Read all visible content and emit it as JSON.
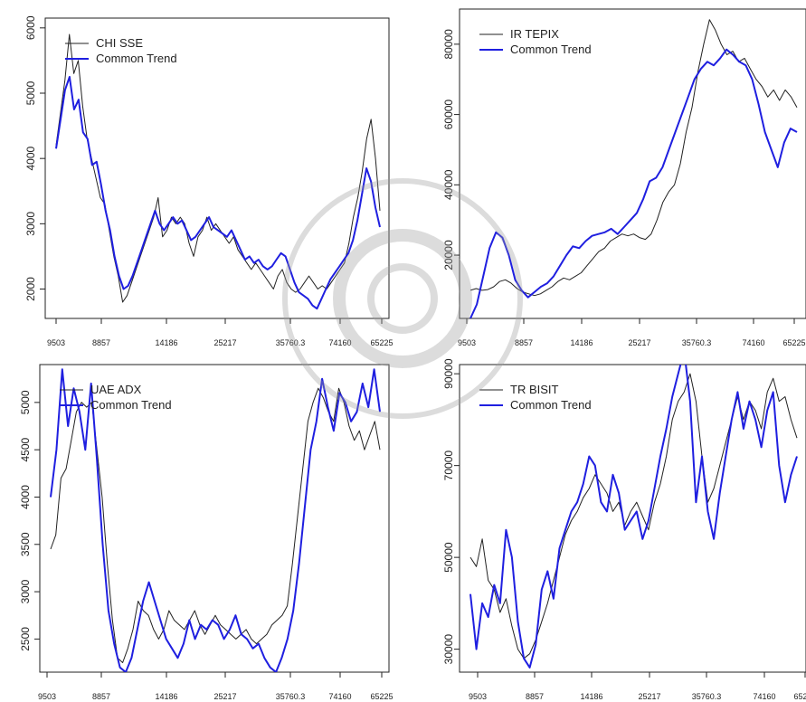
{
  "colors": {
    "index": "#222222",
    "trend": "#1f1fe0",
    "watermark": "#bdbdbd"
  },
  "chart_data": [
    {
      "type": "line",
      "legend_position": "top-left",
      "x_tick_labels": [
        "9503",
        "8857",
        "14186",
        "25217",
        "35760.3",
        "74160",
        "65225"
      ],
      "ylim": [
        1550,
        6150
      ],
      "y_ticks": [
        2000,
        3000,
        4000,
        5000,
        6000
      ],
      "series": [
        {
          "name": "CHI SSE",
          "values": [
            4200,
            4700,
            5200,
            5900,
            5300,
            5500,
            4800,
            4300,
            4000,
            3700,
            3400,
            3300,
            2900,
            2500,
            2200,
            1800,
            1900,
            2100,
            2300,
            2500,
            2700,
            2900,
            3100,
            3400,
            2800,
            2900,
            3100,
            3000,
            3100,
            3000,
            2700,
            2500,
            2800,
            2900,
            3100,
            2900,
            3000,
            2900,
            2800,
            2700,
            2800,
            2600,
            2500,
            2400,
            2300,
            2400,
            2300,
            2200,
            2100,
            2000,
            2200,
            2300,
            2100,
            2000,
            1950,
            2000,
            2100,
            2200,
            2100,
            2000,
            2050,
            2000,
            2100,
            2200,
            2300,
            2400,
            2700,
            3100,
            3400,
            3800,
            4300,
            4600,
            4000,
            3200
          ]
        },
        {
          "name": "Common Trend",
          "values": [
            4150,
            4600,
            5050,
            5250,
            4750,
            4900,
            4400,
            4300,
            3900,
            3950,
            3600,
            3200,
            2900,
            2500,
            2200,
            2000,
            2050,
            2200,
            2400,
            2600,
            2800,
            3000,
            3200,
            3000,
            2900,
            3000,
            3100,
            3000,
            3050,
            2900,
            2750,
            2800,
            2900,
            3000,
            3100,
            2950,
            2900,
            2850,
            2800,
            2900,
            2750,
            2600,
            2450,
            2500,
            2400,
            2450,
            2350,
            2300,
            2350,
            2450,
            2550,
            2500,
            2300,
            2100,
            1950,
            1900,
            1850,
            1750,
            1700,
            1850,
            2000,
            2150,
            2250,
            2350,
            2450,
            2550,
            2750,
            3050,
            3450,
            3850,
            3650,
            3250,
            2950
          ]
        }
      ]
    },
    {
      "type": "line",
      "legend_position": "top-left",
      "x_tick_labels": [
        "9503",
        "8857",
        "14186",
        "25217",
        "35760.3",
        "74160",
        "65225"
      ],
      "ylim": [
        2000,
        90000
      ],
      "y_ticks": [
        20000,
        40000,
        60000,
        80000
      ],
      "series": [
        {
          "name": "IR TEPIX",
          "values": [
            10000,
            10500,
            10000,
            10200,
            11000,
            12500,
            13000,
            12000,
            10500,
            9500,
            9000,
            8500,
            9000,
            10000,
            11000,
            12500,
            13500,
            13000,
            14000,
            15000,
            17000,
            19000,
            21000,
            22000,
            24000,
            25000,
            26000,
            25500,
            26000,
            25000,
            24500,
            26000,
            30000,
            35000,
            38000,
            40000,
            46000,
            55000,
            62000,
            72000,
            80000,
            87000,
            84000,
            80000,
            77000,
            78000,
            75000,
            76000,
            73000,
            70000,
            68000,
            65000,
            67000,
            64000,
            67000,
            65000,
            62000
          ]
        },
        {
          "name": "Common Trend",
          "values": [
            2000,
            6000,
            14000,
            22000,
            26500,
            25000,
            20000,
            13000,
            10000,
            8000,
            9500,
            11000,
            12000,
            14000,
            17000,
            20000,
            22500,
            22000,
            24000,
            25500,
            26000,
            26500,
            27500,
            26000,
            28000,
            30000,
            32000,
            36000,
            41000,
            42000,
            45000,
            50000,
            55000,
            60000,
            65000,
            70000,
            73000,
            75000,
            74000,
            76000,
            78500,
            77000,
            75000,
            74000,
            70000,
            63000,
            55000,
            50000,
            45000,
            52000,
            56000,
            55000
          ]
        }
      ]
    },
    {
      "type": "line",
      "legend_position": "top-left",
      "x_tick_labels": [
        "9503",
        "8857",
        "14186",
        "25217",
        "35760.3",
        "74160",
        "65225"
      ],
      "ylim": [
        2150,
        5400
      ],
      "y_ticks": [
        2500,
        3000,
        3500,
        4000,
        4500,
        5000
      ],
      "series": [
        {
          "name": "UAE ADX",
          "values": [
            3450,
            3600,
            4200,
            4300,
            4600,
            4900,
            5000,
            4950,
            5000,
            4500,
            4000,
            3300,
            2700,
            2300,
            2250,
            2400,
            2600,
            2900,
            2800,
            2750,
            2600,
            2500,
            2600,
            2800,
            2700,
            2650,
            2600,
            2700,
            2800,
            2650,
            2550,
            2650,
            2750,
            2650,
            2600,
            2550,
            2500,
            2550,
            2600,
            2500,
            2450,
            2500,
            2550,
            2650,
            2700,
            2750,
            2850,
            3300,
            3800,
            4300,
            4800,
            5000,
            5150,
            5050,
            4900,
            4800,
            5150,
            5000,
            4750,
            4600,
            4700,
            4500,
            4650,
            4800,
            4500
          ]
        },
        {
          "name": "Common Trend",
          "values": [
            4000,
            4500,
            5350,
            4750,
            5150,
            4900,
            4500,
            5200,
            4400,
            3500,
            2800,
            2450,
            2200,
            2150,
            2300,
            2600,
            2900,
            3100,
            2900,
            2700,
            2500,
            2400,
            2300,
            2450,
            2700,
            2500,
            2650,
            2600,
            2700,
            2650,
            2500,
            2600,
            2750,
            2550,
            2500,
            2400,
            2450,
            2300,
            2200,
            2150,
            2300,
            2500,
            2800,
            3300,
            3900,
            4500,
            4800,
            5250,
            4950,
            4700,
            5100,
            5000,
            4800,
            4900,
            5200,
            4950,
            5350,
            4900
          ]
        }
      ]
    },
    {
      "type": "line",
      "legend_position": "top-left",
      "x_tick_labels": [
        "9503",
        "8857",
        "14186",
        "25217",
        "35760.3",
        "74160",
        "65225"
      ],
      "ylim": [
        25000,
        92000
      ],
      "y_ticks": [
        30000,
        50000,
        70000,
        90000
      ],
      "series": [
        {
          "name": "TR BISIT",
          "values": [
            50000,
            48000,
            54000,
            45000,
            43000,
            38000,
            41000,
            35000,
            30000,
            28000,
            29000,
            32000,
            36000,
            40000,
            45000,
            50000,
            55000,
            58000,
            60000,
            63000,
            65000,
            68000,
            66000,
            64000,
            60000,
            62000,
            57000,
            60000,
            62000,
            59000,
            56000,
            62000,
            66000,
            72000,
            80000,
            84000,
            86000,
            90000,
            84000,
            72000,
            62000,
            65000,
            70000,
            75000,
            80000,
            85000,
            80000,
            84000,
            82000,
            78000,
            86000,
            89000,
            84000,
            85000,
            80000,
            76000
          ]
        },
        {
          "name": "Common Trend",
          "values": [
            42000,
            30000,
            40000,
            37000,
            44000,
            40000,
            56000,
            50000,
            36000,
            28000,
            26000,
            31000,
            43000,
            47000,
            41000,
            52000,
            56000,
            60000,
            62000,
            66000,
            72000,
            70000,
            62000,
            60000,
            68000,
            64000,
            56000,
            58000,
            60000,
            54000,
            58000,
            65000,
            72000,
            78000,
            85000,
            90000,
            95000,
            84000,
            62000,
            72000,
            60000,
            54000,
            64000,
            72000,
            80000,
            86000,
            78000,
            84000,
            80000,
            74000,
            82000,
            86000,
            70000,
            62000,
            68000,
            72000
          ]
        }
      ]
    }
  ]
}
